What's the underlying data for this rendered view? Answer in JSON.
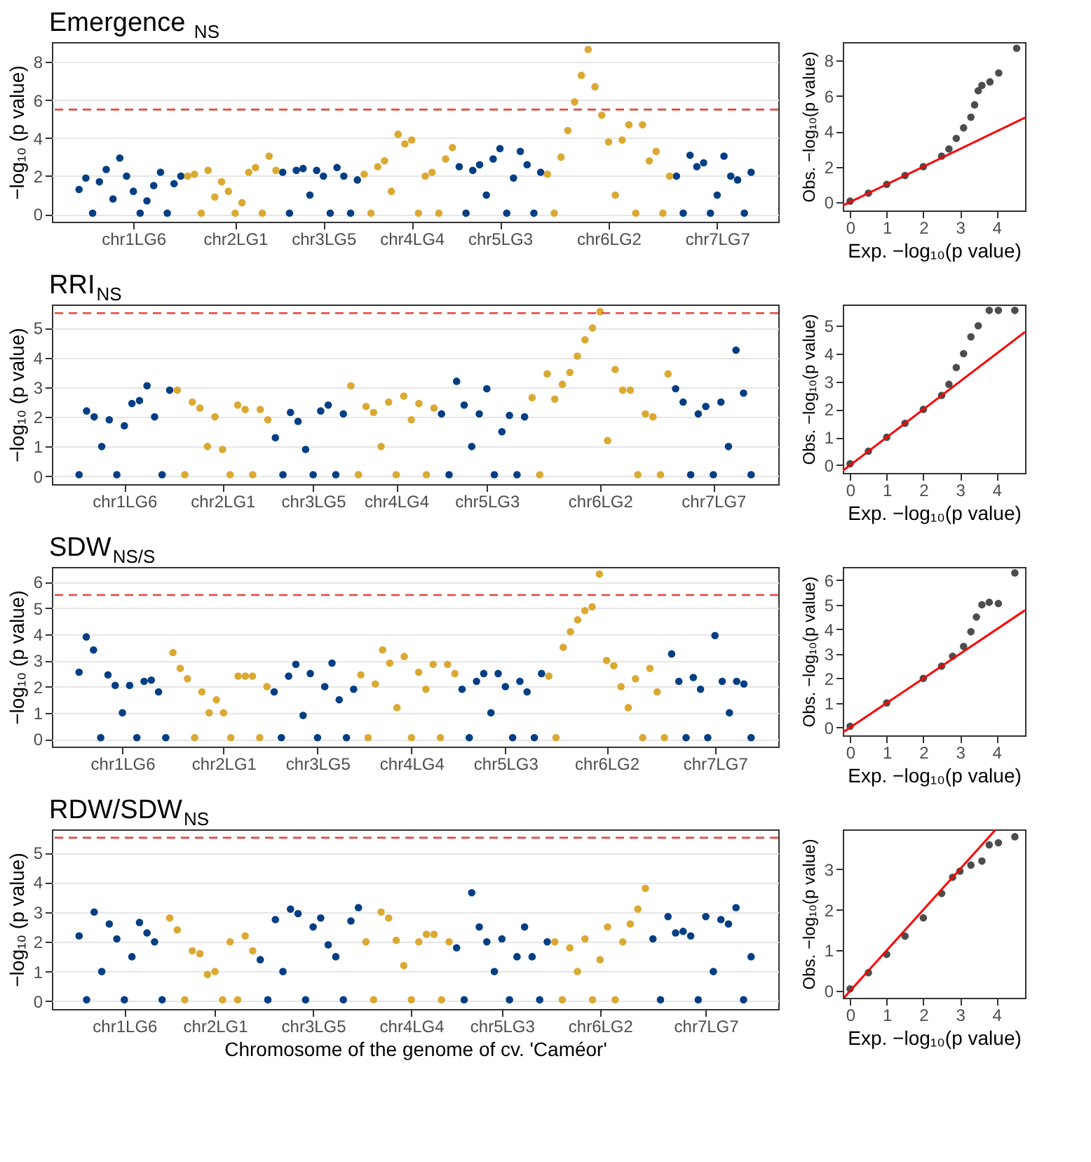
{
  "chart_data": [
    {
      "type": "scatter",
      "title": "Emergence $_{NS}$",
      "ylabel": "−log₁₀ (p value)",
      "ylim": [
        -0.4,
        9.05
      ],
      "yticks": [
        0,
        2,
        4,
        6,
        8
      ],
      "grid": "y",
      "marker": "circle",
      "categories": [
        null,
        null,
        null,
        null,
        null,
        null,
        null,
        null,
        "chr1LG6",
        null,
        null,
        null,
        null,
        null,
        null,
        null,
        null,
        null,
        null,
        null,
        null,
        null,
        null,
        "chr2LG1",
        null,
        null,
        null,
        null,
        null,
        null,
        null,
        null,
        null,
        null,
        null,
        null,
        "chr3LG5",
        null,
        null,
        null,
        null,
        null,
        null,
        null,
        null,
        null,
        null,
        null,
        null,
        "chr4LG4",
        null,
        null,
        null,
        null,
        null,
        null,
        null,
        null,
        null,
        null,
        null,
        null,
        "chr5LG3",
        null,
        null,
        null,
        null,
        null,
        null,
        null,
        null,
        null,
        null,
        null,
        null,
        null,
        null,
        null,
        "chr6LG2",
        null,
        null,
        null,
        null,
        null,
        null,
        null,
        null,
        null,
        null,
        null,
        null,
        null,
        null,
        null,
        "chr7LG7",
        null,
        null,
        null,
        null,
        null
      ],
      "ref_lines": [
        {
          "axis": "y",
          "value": 5.5,
          "color": "#e8453c",
          "line_style": "dashed"
        }
      ],
      "series": [
        {
          "color": "#023e84",
          "values": [
            1.3,
            1.9,
            0.05,
            1.7,
            2.35,
            0.8,
            2.95,
            2.0,
            1.2,
            0.05,
            0.7,
            1.5,
            2.2,
            0.05,
            1.6,
            2.0,
            null,
            null,
            null,
            null,
            null,
            null,
            null,
            null,
            null,
            null,
            null,
            null,
            null,
            null,
            2.2,
            0.05,
            2.3,
            2.4,
            1.0,
            2.3,
            2.0,
            0.05,
            2.45,
            2.0,
            0.05,
            1.8,
            null,
            null,
            null,
            null,
            null,
            null,
            null,
            null,
            null,
            null,
            null,
            null,
            null,
            null,
            2.5,
            0.05,
            2.3,
            2.6,
            1.0,
            2.9,
            3.45,
            0.05,
            1.9,
            3.3,
            2.6,
            0.05,
            2.2,
            null,
            null,
            null,
            null,
            null,
            null,
            null,
            null,
            null,
            null,
            null,
            null,
            null,
            null,
            null,
            null,
            null,
            null,
            null,
            2.0,
            0.05,
            3.1,
            2.5,
            2.7,
            0.05,
            1.0,
            3.05,
            2.0,
            1.8,
            0.05,
            2.2
          ]
        },
        {
          "color": "#dba933",
          "values": [
            null,
            null,
            null,
            null,
            null,
            null,
            null,
            null,
            null,
            null,
            null,
            null,
            null,
            null,
            null,
            null,
            2.0,
            2.1,
            0.05,
            2.3,
            0.9,
            1.7,
            1.2,
            0.05,
            0.6,
            2.2,
            2.45,
            0.05,
            3.05,
            2.3,
            null,
            null,
            null,
            null,
            null,
            null,
            null,
            null,
            null,
            null,
            null,
            null,
            2.1,
            0.05,
            2.5,
            2.8,
            1.2,
            4.2,
            3.7,
            3.9,
            0.05,
            2.0,
            2.2,
            0.05,
            2.9,
            3.5,
            null,
            null,
            null,
            null,
            null,
            null,
            null,
            null,
            null,
            null,
            null,
            null,
            null,
            2.1,
            0.05,
            3.0,
            4.4,
            5.9,
            7.3,
            8.66,
            6.7,
            5.2,
            3.8,
            1.0,
            3.9,
            4.7,
            0.05,
            4.7,
            2.8,
            3.3,
            0.05,
            2.0,
            null,
            null,
            null,
            null,
            null,
            null,
            null,
            null,
            null,
            null,
            null,
            null
          ]
        }
      ]
    },
    {
      "type": "scatter",
      "xlabel": "Exp. −log₁₀(p value)",
      "ylabel": "Obs. −log₁₀(p value)",
      "xlim": [
        -0.2,
        4.78
      ],
      "ylim": [
        -0.48,
        9.05
      ],
      "xticks": [
        0,
        1,
        2,
        3,
        4
      ],
      "yticks": [
        0,
        2,
        4,
        6,
        8
      ],
      "series": [
        {
          "color": "#4d4d4d",
          "marker": "circle",
          "x": [
            0,
            0.5,
            1,
            1.5,
            2,
            2.5,
            2.7,
            2.9,
            3.1,
            3.3,
            3.4,
            3.5,
            3.6,
            3.82,
            4.06,
            4.55
          ],
          "values": [
            0.05,
            0.5,
            1.0,
            1.5,
            2.0,
            2.6,
            3.0,
            3.6,
            4.2,
            4.8,
            5.5,
            6.3,
            6.6,
            6.8,
            7.3,
            8.7
          ]
        },
        {
          "type": "line",
          "color": "#ff0000",
          "line_style": "solid",
          "x": [
            -0.2,
            4.78
          ],
          "values": [
            -0.2,
            4.78
          ]
        }
      ]
    },
    {
      "type": "scatter",
      "title": "RRI$_{NS}$",
      "ylabel": "−log₁₀ (p value)",
      "ylim": [
        -0.27,
        5.79
      ],
      "yticks": [
        0,
        1,
        2,
        3,
        4,
        5
      ],
      "grid": "y",
      "marker": "circle",
      "categories": [
        null,
        null,
        null,
        null,
        null,
        null,
        "chr1LG6",
        null,
        null,
        null,
        null,
        null,
        null,
        null,
        null,
        null,
        null,
        null,
        null,
        "chr2LG1",
        null,
        null,
        null,
        null,
        null,
        null,
        null,
        null,
        null,
        null,
        null,
        "chr3LG5",
        null,
        null,
        null,
        null,
        null,
        null,
        null,
        null,
        null,
        null,
        "chr4LG4",
        null,
        null,
        null,
        null,
        null,
        null,
        null,
        null,
        null,
        null,
        null,
        "chr5LG3",
        null,
        null,
        null,
        null,
        null,
        null,
        null,
        null,
        null,
        null,
        null,
        null,
        null,
        null,
        "chr6LG2",
        null,
        null,
        null,
        null,
        null,
        null,
        null,
        null,
        null,
        null,
        null,
        null,
        null,
        null,
        "chr7LG7",
        null,
        null,
        null,
        null,
        null
      ],
      "ref_lines": [
        {
          "axis": "y",
          "value": 5.5,
          "color": "#e8453c",
          "line_style": "dashed"
        }
      ],
      "series": [
        {
          "color": "#023e84",
          "values": [
            0.05,
            2.2,
            2.0,
            1.0,
            1.9,
            0.05,
            1.7,
            2.45,
            2.55,
            3.05,
            2.0,
            0.05,
            2.9,
            null,
            null,
            null,
            null,
            null,
            null,
            null,
            null,
            null,
            null,
            null,
            null,
            null,
            1.3,
            0.05,
            2.15,
            1.85,
            0.9,
            0.05,
            2.2,
            2.4,
            0.05,
            2.1,
            null,
            null,
            null,
            null,
            null,
            null,
            null,
            null,
            null,
            null,
            null,
            null,
            2.1,
            0.05,
            3.2,
            2.4,
            1.0,
            2.1,
            2.95,
            0.05,
            1.5,
            2.05,
            0.05,
            2.0,
            null,
            null,
            null,
            null,
            null,
            null,
            null,
            null,
            null,
            null,
            null,
            null,
            null,
            null,
            null,
            null,
            null,
            null,
            null,
            2.95,
            2.5,
            0.05,
            2.1,
            2.35,
            0.05,
            2.5,
            1.0,
            4.25,
            2.8,
            0.05
          ]
        },
        {
          "color": "#dba933",
          "values": [
            null,
            null,
            null,
            null,
            null,
            null,
            null,
            null,
            null,
            null,
            null,
            null,
            null,
            2.9,
            0.05,
            2.5,
            2.3,
            1.0,
            2.0,
            0.9,
            0.05,
            2.4,
            2.25,
            0.05,
            2.25,
            1.9,
            null,
            null,
            null,
            null,
            null,
            null,
            null,
            null,
            null,
            null,
            3.05,
            0.05,
            2.35,
            2.15,
            1.0,
            2.5,
            0.05,
            2.7,
            1.9,
            2.45,
            0.05,
            2.3,
            null,
            null,
            null,
            null,
            null,
            null,
            null,
            null,
            null,
            null,
            null,
            null,
            2.65,
            0.05,
            3.45,
            2.6,
            3.1,
            3.5,
            4.05,
            4.6,
            5.0,
            5.55,
            1.2,
            3.6,
            2.9,
            2.9,
            0.05,
            2.1,
            2.0,
            0.05,
            3.45,
            null,
            null,
            null,
            null,
            null,
            null,
            null,
            null,
            null,
            null,
            null
          ]
        }
      ]
    },
    {
      "type": "scatter",
      "xlabel": "Exp. −log₁₀(p value)",
      "ylabel": "Obs. −log₁₀(p value)",
      "xlim": [
        -0.2,
        4.78
      ],
      "ylim": [
        -0.28,
        5.76
      ],
      "xticks": [
        0,
        1,
        2,
        3,
        4
      ],
      "yticks": [
        0,
        1,
        2,
        3,
        4,
        5
      ],
      "series": [
        {
          "color": "#4d4d4d",
          "marker": "circle",
          "x": [
            0,
            0.5,
            1,
            1.5,
            2,
            2.5,
            2.7,
            2.9,
            3.1,
            3.3,
            3.5,
            3.8,
            4.05,
            4.5
          ],
          "values": [
            0.05,
            0.5,
            1.0,
            1.5,
            2.0,
            2.5,
            2.9,
            3.5,
            4.0,
            4.6,
            5.0,
            5.55,
            5.55,
            5.55
          ]
        },
        {
          "type": "line",
          "color": "#ff0000",
          "line_style": "solid",
          "x": [
            -0.2,
            4.78
          ],
          "values": [
            -0.2,
            4.78
          ]
        }
      ]
    },
    {
      "type": "scatter",
      "title": "SDW$_{NS/S}$",
      "ylabel": "−log₁₀ (p value)",
      "ylim": [
        -0.29,
        6.57
      ],
      "yticks": [
        0,
        1,
        2,
        3,
        4,
        5,
        6
      ],
      "grid": "y",
      "marker": "circle",
      "categories": [
        null,
        null,
        null,
        null,
        null,
        null,
        "chr1LG6",
        null,
        null,
        null,
        null,
        null,
        null,
        null,
        null,
        null,
        null,
        null,
        null,
        null,
        "chr2LG1",
        null,
        null,
        null,
        null,
        null,
        null,
        null,
        null,
        null,
        null,
        null,
        null,
        "chr3LG5",
        null,
        null,
        null,
        null,
        null,
        null,
        null,
        null,
        null,
        null,
        null,
        null,
        "chr4LG4",
        null,
        null,
        null,
        null,
        null,
        null,
        null,
        null,
        null,
        null,
        null,
        null,
        "chr5LG3",
        null,
        null,
        null,
        null,
        null,
        null,
        null,
        null,
        null,
        null,
        null,
        null,
        null,
        "chr6LG2",
        null,
        null,
        null,
        null,
        null,
        null,
        null,
        null,
        null,
        null,
        null,
        null,
        null,
        null,
        "chr7LG7",
        null,
        null,
        null,
        null,
        null
      ],
      "ref_lines": [
        {
          "axis": "y",
          "value": 5.5,
          "color": "#e8453c",
          "line_style": "dashed"
        }
      ],
      "series": [
        {
          "color": "#023e84",
          "values": [
            2.55,
            3.9,
            3.4,
            0.05,
            2.45,
            2.05,
            1.0,
            2.05,
            0.05,
            2.2,
            2.25,
            1.8,
            0.05,
            null,
            null,
            null,
            null,
            null,
            null,
            null,
            null,
            null,
            null,
            null,
            null,
            null,
            null,
            1.8,
            0.05,
            2.4,
            2.85,
            0.9,
            2.5,
            0.05,
            2.0,
            2.9,
            1.5,
            0.05,
            1.9,
            null,
            null,
            null,
            null,
            null,
            null,
            null,
            null,
            null,
            null,
            null,
            null,
            null,
            null,
            1.9,
            0.05,
            2.2,
            2.5,
            1.0,
            2.5,
            2.0,
            0.05,
            2.2,
            1.8,
            0.05,
            2.5,
            null,
            null,
            null,
            null,
            null,
            null,
            null,
            null,
            null,
            null,
            null,
            null,
            null,
            null,
            null,
            null,
            null,
            3.25,
            2.2,
            0.05,
            2.35,
            1.9,
            0.05,
            3.95,
            2.2,
            1.0,
            2.2,
            2.1,
            0.05
          ]
        },
        {
          "color": "#dba933",
          "values": [
            null,
            null,
            null,
            null,
            null,
            null,
            null,
            null,
            null,
            null,
            null,
            null,
            null,
            3.3,
            2.7,
            2.3,
            0.05,
            1.8,
            1.0,
            1.5,
            1.0,
            0.05,
            2.4,
            2.4,
            2.4,
            0.05,
            2.0,
            null,
            null,
            null,
            null,
            null,
            null,
            null,
            null,
            null,
            null,
            null,
            null,
            2.45,
            0.05,
            2.1,
            3.4,
            2.9,
            1.2,
            3.15,
            0.05,
            2.55,
            1.9,
            2.85,
            0.05,
            2.85,
            2.5,
            null,
            null,
            null,
            null,
            null,
            null,
            null,
            null,
            null,
            null,
            null,
            null,
            2.4,
            0.05,
            3.5,
            4.1,
            4.55,
            4.9,
            5.05,
            6.3,
            3.0,
            2.8,
            2.0,
            1.2,
            2.3,
            0.05,
            2.7,
            1.8,
            0.05,
            null,
            null,
            null,
            null,
            null,
            null,
            null,
            null,
            null,
            null,
            null,
            null
          ]
        }
      ]
    },
    {
      "type": "scatter",
      "xlabel": "Exp. −log₁₀(p value)",
      "ylabel": "Obs. −log₁₀(p value)",
      "xlim": [
        -0.2,
        4.78
      ],
      "ylim": [
        -0.32,
        6.54
      ],
      "xticks": [
        0,
        1,
        2,
        3,
        4
      ],
      "yticks": [
        0,
        1,
        2,
        3,
        4,
        5,
        6
      ],
      "series": [
        {
          "color": "#4d4d4d",
          "marker": "circle",
          "x": [
            0,
            1,
            2,
            2.5,
            2.8,
            3.1,
            3.3,
            3.45,
            3.6,
            3.8,
            4.05,
            4.5
          ],
          "values": [
            0.05,
            1.0,
            2.0,
            2.5,
            2.9,
            3.3,
            3.9,
            4.5,
            5.0,
            5.1,
            5.05,
            6.3
          ]
        },
        {
          "type": "line",
          "color": "#ff0000",
          "line_style": "solid",
          "x": [
            -0.2,
            4.78
          ],
          "values": [
            -0.2,
            4.78
          ]
        }
      ]
    },
    {
      "type": "scatter",
      "title": "RDW/SDW$_{NS}$",
      "xlabel": "Chromosome of the genome of cv. 'Caméor'",
      "ylabel": "−log₁₀ (p value)",
      "ylim": [
        -0.26,
        5.78
      ],
      "yticks": [
        0,
        1,
        2,
        3,
        4,
        5
      ],
      "grid": "y",
      "marker": "circle",
      "categories": [
        null,
        null,
        null,
        null,
        null,
        null,
        "chr1LG6",
        null,
        null,
        null,
        null,
        null,
        null,
        null,
        null,
        null,
        null,
        null,
        "chr2LG1",
        null,
        null,
        null,
        null,
        null,
        null,
        null,
        null,
        null,
        null,
        null,
        null,
        "chr3LG5",
        null,
        null,
        null,
        null,
        null,
        null,
        null,
        null,
        null,
        null,
        null,
        null,
        "chr4LG4",
        null,
        null,
        null,
        null,
        null,
        null,
        null,
        null,
        null,
        null,
        null,
        "chr5LG3",
        null,
        null,
        null,
        null,
        null,
        null,
        null,
        null,
        null,
        null,
        null,
        null,
        "chr6LG2",
        null,
        null,
        null,
        null,
        null,
        null,
        null,
        null,
        null,
        null,
        null,
        null,
        null,
        "chr7LG7",
        null,
        null,
        null,
        null,
        null,
        null
      ],
      "ref_lines": [
        {
          "axis": "y",
          "value": 5.5,
          "color": "#e8453c",
          "line_style": "dashed"
        }
      ],
      "series": [
        {
          "color": "#023e84",
          "values": [
            2.2,
            0.05,
            3.0,
            1.0,
            2.6,
            2.1,
            0.05,
            1.5,
            2.65,
            2.3,
            2.0,
            0.05,
            null,
            null,
            null,
            null,
            null,
            null,
            null,
            null,
            null,
            null,
            null,
            null,
            1.4,
            0.05,
            2.75,
            1.0,
            3.1,
            2.95,
            0.05,
            2.5,
            2.8,
            1.9,
            1.5,
            0.05,
            2.7,
            3.15,
            null,
            null,
            null,
            null,
            null,
            null,
            null,
            null,
            null,
            null,
            null,
            null,
            1.8,
            0.05,
            3.65,
            2.5,
            2.0,
            1.0,
            2.1,
            0.05,
            1.5,
            2.5,
            1.5,
            0.05,
            2.0,
            null,
            null,
            null,
            null,
            null,
            null,
            null,
            null,
            null,
            null,
            null,
            null,
            null,
            2.1,
            0.05,
            2.85,
            2.3,
            2.35,
            2.2,
            0.05,
            2.85,
            1.0,
            2.75,
            2.6,
            3.15,
            0.05,
            1.5
          ]
        },
        {
          "color": "#dba933",
          "values": [
            null,
            null,
            null,
            null,
            null,
            null,
            null,
            null,
            null,
            null,
            null,
            null,
            2.8,
            2.4,
            0.05,
            1.7,
            1.6,
            0.9,
            1.0,
            0.05,
            2.0,
            0.05,
            2.2,
            1.7,
            null,
            null,
            null,
            null,
            null,
            null,
            null,
            null,
            null,
            null,
            null,
            null,
            null,
            null,
            2.0,
            0.05,
            3.0,
            2.8,
            2.05,
            1.2,
            0.05,
            2.0,
            2.25,
            2.25,
            0.05,
            2.0,
            null,
            null,
            null,
            null,
            null,
            null,
            null,
            null,
            null,
            null,
            null,
            null,
            null,
            2.0,
            0.05,
            1.8,
            1.0,
            2.1,
            0.05,
            1.4,
            2.5,
            0.05,
            2.0,
            2.6,
            3.1,
            3.8,
            null,
            null,
            null,
            null,
            null,
            null,
            null,
            null,
            null,
            null,
            null,
            null,
            null,
            null
          ]
        }
      ]
    },
    {
      "type": "scatter",
      "xlabel": "Exp. −log₁₀(p value)",
      "ylabel": "Obs. −log₁₀(p value)",
      "xlim": [
        -0.2,
        4.78
      ],
      "ylim": [
        -0.17,
        3.98
      ],
      "xticks": [
        0,
        1,
        2,
        3,
        4
      ],
      "yticks": [
        0,
        1,
        2,
        3
      ],
      "series": [
        {
          "color": "#4d4d4d",
          "marker": "circle",
          "x": [
            0,
            0.5,
            1,
            1.5,
            2,
            2.5,
            2.8,
            3.0,
            3.3,
            3.6,
            3.8,
            4.05,
            4.5
          ],
          "values": [
            0.05,
            0.45,
            0.9,
            1.35,
            1.8,
            2.4,
            2.8,
            2.95,
            3.1,
            3.2,
            3.6,
            3.65,
            3.8
          ]
        },
        {
          "type": "line",
          "color": "#ff0000",
          "line_style": "solid",
          "x": [
            -0.17,
            3.98
          ],
          "values": [
            -0.17,
            3.98
          ]
        }
      ]
    }
  ]
}
